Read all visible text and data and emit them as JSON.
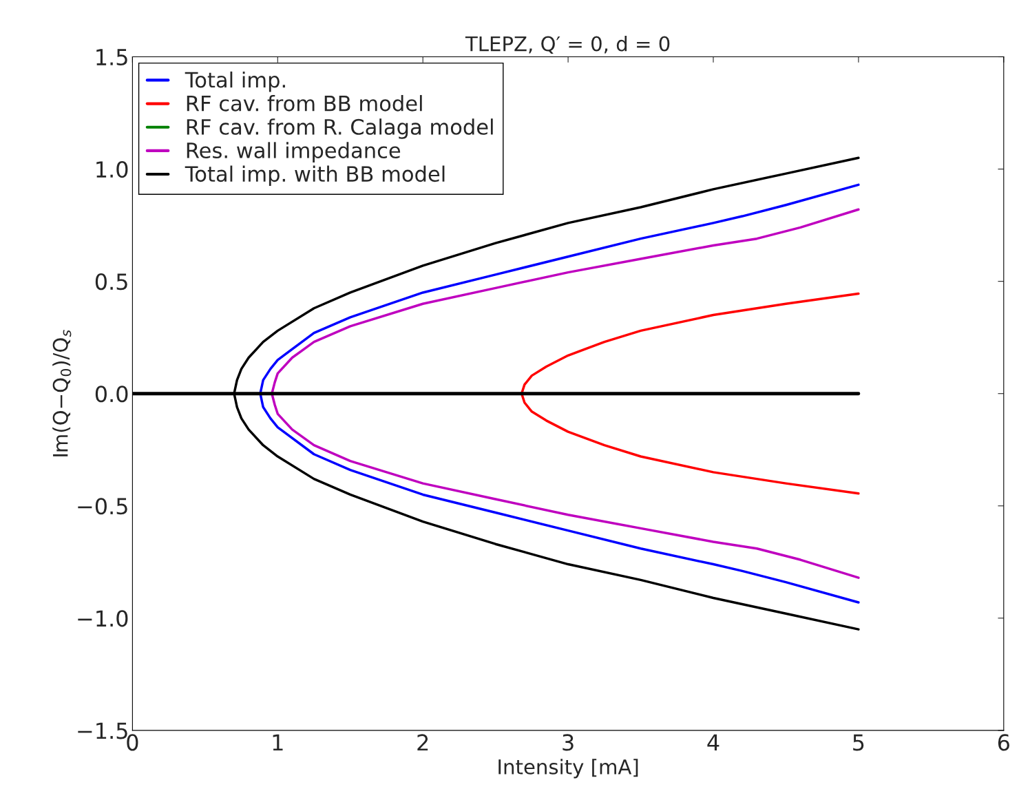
{
  "chart_data": {
    "type": "line",
    "title": "TLEPZ, Q′ = 0, d = 0",
    "xlabel": "Intensity [mA]",
    "ylabel": "Im(Q−Q$_{0}$)/Q$_{s}$",
    "xlim": [
      0,
      6
    ],
    "ylim": [
      -1.5,
      1.5
    ],
    "xticks": [
      0,
      1,
      2,
      3,
      4,
      5,
      6
    ],
    "yticks": [
      {
        "value": -1.5,
        "label": "−1.5"
      },
      {
        "value": -1.0,
        "label": "−1.0"
      },
      {
        "value": -0.5,
        "label": "−0.5"
      },
      {
        "value": 0.0,
        "label": "0.0"
      },
      {
        "value": 0.5,
        "label": "0.5"
      },
      {
        "value": 1.0,
        "label": "1.0"
      },
      {
        "value": 1.5,
        "label": "1.5"
      }
    ],
    "grid": false,
    "legend": "top left",
    "marker": "none",
    "line_style": "solid",
    "series": [
      {
        "name": "Total imp.",
        "color": "#0000ff",
        "x": [
          5,
          4.5,
          4.2,
          4,
          3.5,
          3,
          2.5,
          2,
          1.5,
          1.25,
          1.0,
          0.95,
          0.9,
          0.88,
          0.9,
          0.95,
          1.0,
          1.25,
          1.5,
          2,
          2.5,
          3,
          3.5,
          4,
          4.2,
          4.5,
          5
        ],
        "values": [
          0.93,
          0.84,
          0.79,
          0.76,
          0.69,
          0.61,
          0.53,
          0.45,
          0.34,
          0.27,
          0.15,
          0.11,
          0.06,
          0,
          -0.06,
          -0.11,
          -0.15,
          -0.27,
          -0.34,
          -0.45,
          -0.53,
          -0.61,
          -0.69,
          -0.76,
          -0.79,
          -0.84,
          -0.93
        ]
      },
      {
        "name": "RF cav. from BB model",
        "color": "#ff0000",
        "x": [
          5,
          4.5,
          4,
          3.5,
          3.25,
          3,
          2.85,
          2.75,
          2.7,
          2.68,
          2.7,
          2.75,
          2.85,
          3,
          3.25,
          3.5,
          4,
          4.5,
          5
        ],
        "values": [
          0.445,
          0.4,
          0.35,
          0.28,
          0.23,
          0.17,
          0.12,
          0.08,
          0.04,
          0,
          -0.04,
          -0.08,
          -0.12,
          -0.17,
          -0.23,
          -0.28,
          -0.35,
          -0.4,
          -0.445
        ]
      },
      {
        "name": "RF cav. from R. Calaga model",
        "color": "#008000"
      },
      {
        "name": "Res. wall impedance",
        "color": "#bf00bf",
        "x": [
          5,
          4.6,
          4.3,
          4,
          3.5,
          3,
          2.5,
          2,
          1.5,
          1.25,
          1.1,
          1.0,
          0.98,
          0.96,
          0.98,
          1.0,
          1.1,
          1.25,
          1.5,
          2,
          2.5,
          3,
          3.5,
          4,
          4.3,
          4.6,
          5
        ],
        "values": [
          0.82,
          0.74,
          0.69,
          0.66,
          0.6,
          0.54,
          0.47,
          0.4,
          0.3,
          0.23,
          0.16,
          0.09,
          0.05,
          0,
          -0.05,
          -0.09,
          -0.16,
          -0.23,
          -0.3,
          -0.4,
          -0.47,
          -0.54,
          -0.6,
          -0.66,
          -0.69,
          -0.74,
          -0.82
        ]
      },
      {
        "name": "Total imp. with BB model",
        "color": "#000000",
        "x": [
          5,
          4.5,
          4,
          3.5,
          3,
          2.5,
          2,
          1.5,
          1.25,
          1.0,
          0.9,
          0.8,
          0.75,
          0.72,
          0.7,
          0.72,
          0.75,
          0.8,
          0.9,
          1.0,
          1.25,
          1.5,
          2,
          2.5,
          3,
          3.5,
          4,
          4.5,
          5
        ],
        "values": [
          1.05,
          0.98,
          0.91,
          0.83,
          0.76,
          0.67,
          0.57,
          0.45,
          0.38,
          0.28,
          0.23,
          0.16,
          0.11,
          0.06,
          0,
          -0.06,
          -0.11,
          -0.16,
          -0.23,
          -0.28,
          -0.38,
          -0.45,
          -0.57,
          -0.67,
          -0.76,
          -0.83,
          -0.91,
          -0.98,
          -1.05
        ]
      },
      {
        "color": "#000000",
        "x": [
          0,
          5
        ],
        "values": [
          0,
          0
        ]
      }
    ]
  }
}
